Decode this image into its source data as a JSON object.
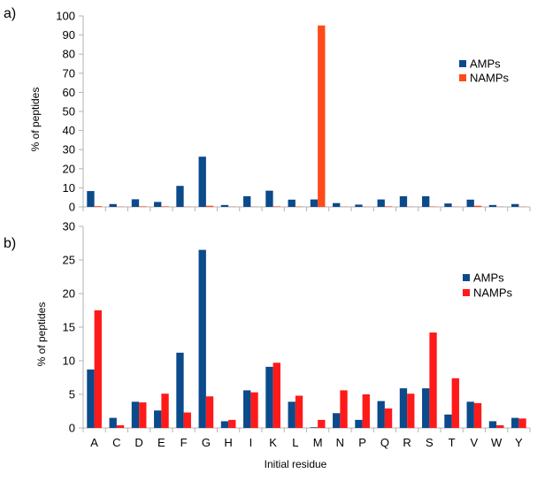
{
  "chart_data": [
    {
      "panel_label": "a)",
      "type": "bar",
      "categories": [
        "A",
        "C",
        "D",
        "E",
        "F",
        "G",
        "H",
        "I",
        "K",
        "L",
        "M",
        "N",
        "P",
        "Q",
        "R",
        "S",
        "T",
        "V",
        "W",
        "Y"
      ],
      "series": [
        {
          "name": "AMPs",
          "color": "#0b4a8b",
          "values": [
            8.3,
            1.5,
            4.0,
            2.6,
            11.0,
            26.3,
            1.0,
            5.6,
            8.5,
            3.8,
            3.9,
            2.0,
            1.2,
            3.9,
            5.6,
            5.6,
            1.8,
            3.8,
            1.0,
            1.5
          ]
        },
        {
          "name": "NAMPs",
          "color": "#ff4a1a",
          "values": [
            0.4,
            0.1,
            0.3,
            0.3,
            0.1,
            0.6,
            0.1,
            0.1,
            0.3,
            0.2,
            95.0,
            0.1,
            0.1,
            0.3,
            0.1,
            0.2,
            0.1,
            0.6,
            0.1,
            0.1
          ]
        }
      ],
      "xlabel": "",
      "ylabel": "% of peptides",
      "ylim": [
        0,
        100
      ],
      "yticks": [
        0,
        10,
        20,
        30,
        40,
        50,
        60,
        70,
        80,
        90,
        100
      ],
      "show_xticklabels": false,
      "grid": false,
      "legend": "right"
    },
    {
      "panel_label": "b)",
      "type": "bar",
      "categories": [
        "A",
        "C",
        "D",
        "E",
        "F",
        "G",
        "H",
        "I",
        "K",
        "L",
        "M",
        "N",
        "P",
        "Q",
        "R",
        "S",
        "T",
        "V",
        "W",
        "Y"
      ],
      "series": [
        {
          "name": "AMPs",
          "color": "#0b4a8b",
          "values": [
            8.7,
            1.5,
            3.9,
            2.6,
            11.2,
            26.5,
            1.0,
            5.6,
            9.1,
            3.9,
            0.1,
            2.2,
            1.2,
            4.0,
            5.9,
            5.9,
            2.0,
            3.9,
            1.0,
            1.5
          ]
        },
        {
          "name": "NAMPs",
          "color": "#ff1a1a",
          "values": [
            17.5,
            0.4,
            3.8,
            5.1,
            2.3,
            4.7,
            1.2,
            5.3,
            9.7,
            4.8,
            1.2,
            5.6,
            5.0,
            2.9,
            5.1,
            14.2,
            7.4,
            3.7,
            0.4,
            1.4
          ]
        }
      ],
      "xlabel": "Initial residue",
      "ylabel": "% of peptides",
      "ylim": [
        0,
        30
      ],
      "yticks": [
        0,
        5,
        10,
        15,
        20,
        25,
        30
      ],
      "show_xticklabels": true,
      "grid": false,
      "legend": "right"
    }
  ]
}
